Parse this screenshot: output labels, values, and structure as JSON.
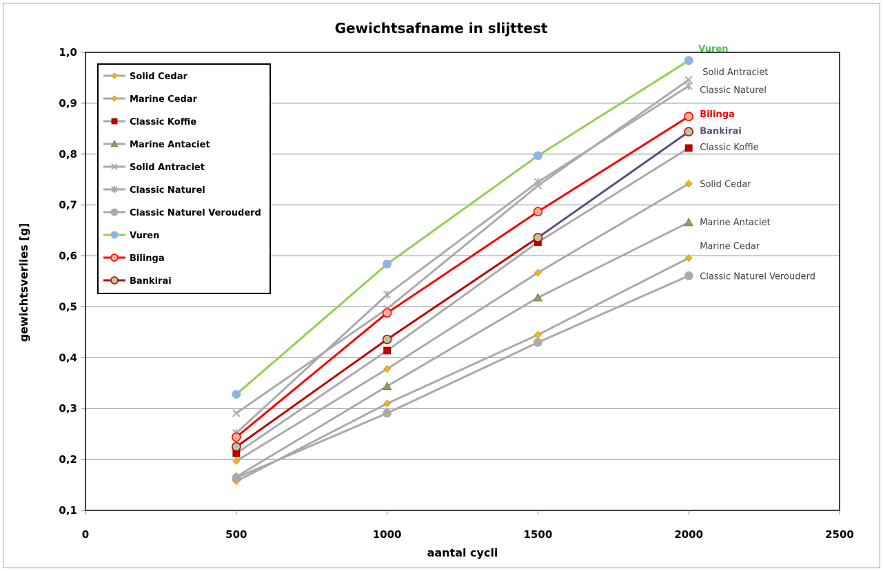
{
  "chart_data": {
    "type": "line",
    "title": "Gewichtsafname in slijttest",
    "xlabel": "aantal cycli",
    "ylabel": "gewichtsverlies  [g]",
    "xlim": [
      0,
      2500
    ],
    "ylim": [
      0.1,
      1.0
    ],
    "xticks": [
      "0",
      "500",
      "1000",
      "1500",
      "2000",
      "2500"
    ],
    "yticks": [
      "0,1",
      "0,2",
      "0,3",
      "0,4",
      "0,5",
      "0,6",
      "0,7",
      "0,8",
      "0,9",
      "1,0"
    ],
    "grid": "horizontal",
    "legend_position": "top-left",
    "x": [
      500,
      1000,
      1500,
      2000
    ],
    "series": [
      {
        "name": "Solid Cedar",
        "values": [
          0.197,
          0.378,
          0.567,
          0.742
        ],
        "color": "#aaaaaa",
        "marker": "diamond",
        "marker_color": "#f0b323",
        "end_label": "Solid Cedar",
        "label_color": "#404040"
      },
      {
        "name": "Marine Cedar",
        "values": [
          0.157,
          0.31,
          0.445,
          0.596
        ],
        "color": "#aaaaaa",
        "marker": "diamond",
        "marker_color": "#f0b323",
        "end_label": "Marine Cedar",
        "label_color": "#404040"
      },
      {
        "name": "Classic Koffie",
        "values": [
          0.212,
          0.414,
          0.627,
          0.812
        ],
        "color": "#aaaaaa",
        "marker": "square",
        "marker_color": "#c00000",
        "end_label": "Classic Koffie",
        "label_color": "#404040"
      },
      {
        "name": "Marine Antaciet",
        "values": [
          0.166,
          0.344,
          0.518,
          0.666
        ],
        "color": "#aaaaaa",
        "marker": "triangle",
        "marker_color": "#8aa05a",
        "end_label": "Marine Antaciet",
        "label_color": "#404040"
      },
      {
        "name": "Solid Antraciet",
        "values": [
          0.291,
          0.496,
          0.738,
          0.946
        ],
        "color": "#aaaaaa",
        "marker": "x",
        "marker_color": "#aaaaaa",
        "end_label": "Solid Antraciet",
        "label_color": "#404040"
      },
      {
        "name": "Classic Naturel",
        "values": [
          0.252,
          0.524,
          0.745,
          0.934
        ],
        "color": "#aaaaaa",
        "marker": "star",
        "marker_color": "#aaaaaa",
        "end_label": "Classic Naturel",
        "label_color": "#404040"
      },
      {
        "name": "Classic Naturel Verouderd",
        "values": [
          0.164,
          0.291,
          0.43,
          0.561
        ],
        "color": "#aaaaaa",
        "marker": "circle",
        "marker_color": "#aaaaaa",
        "end_label": "Classic Naturel Verouderd",
        "label_color": "#404040"
      },
      {
        "name": "Vuren",
        "values": [
          0.328,
          0.584,
          0.797,
          0.984
        ],
        "color": "#92d050",
        "marker": "circle",
        "marker_color": "#8eb4e3",
        "end_label": "Vuren",
        "label_color": "#4fbe4f"
      },
      {
        "name": "Bilinga",
        "values": [
          0.244,
          0.488,
          0.687,
          0.874
        ],
        "color": "#ff0000",
        "marker": "circle",
        "marker_color": "#f8b193",
        "marker_stroke": "#ff0000",
        "end_label": "Bilinga",
        "label_color": "#ff0000"
      },
      {
        "name": "Bankirai",
        "values": [
          0.225,
          0.436,
          0.636,
          0.844
        ],
        "color": "#c00000",
        "color_last": "#604a7b",
        "marker": "circle",
        "marker_color": "#b7c99a",
        "marker_stroke": "#c00000",
        "end_label": "Bankirai",
        "label_color": "#604a7b"
      }
    ]
  }
}
